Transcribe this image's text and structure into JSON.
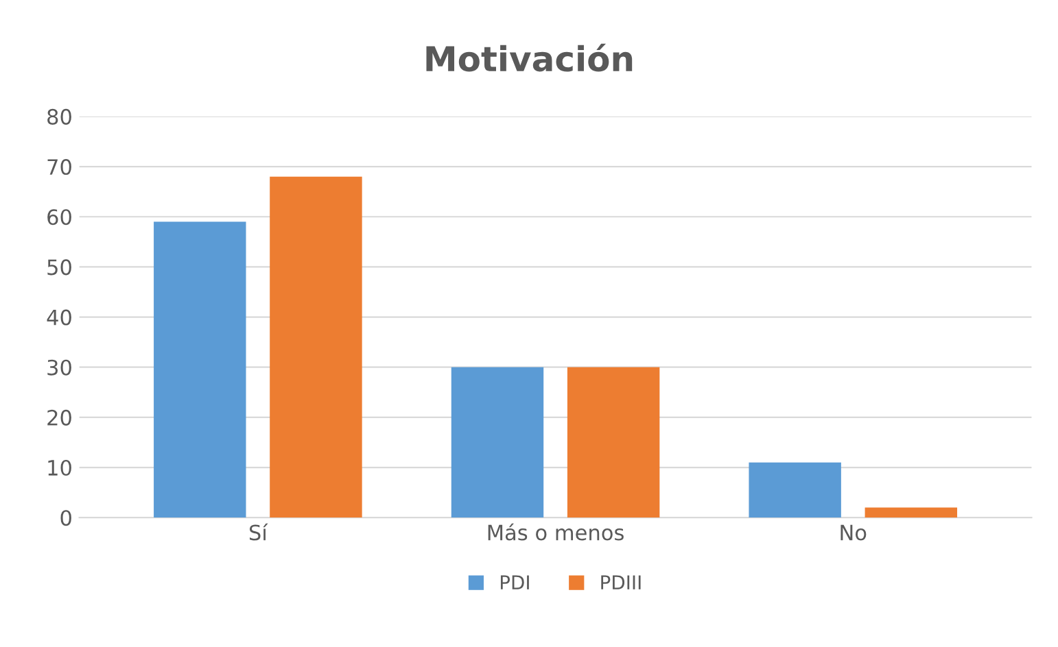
{
  "chart_data": {
    "type": "bar",
    "title": "Motivación",
    "categories": [
      "Sí",
      "Más o menos",
      "No"
    ],
    "series": [
      {
        "name": "PDI",
        "color": "#5b9bd5",
        "values": [
          59,
          30,
          11
        ]
      },
      {
        "name": "PDIII",
        "color": "#ed7d31",
        "values": [
          68,
          30,
          2
        ]
      }
    ],
    "ylim": [
      0,
      80
    ],
    "yticks": [
      0,
      10,
      20,
      30,
      40,
      50,
      60,
      70,
      80
    ],
    "grid": "y",
    "legend": "bottom"
  }
}
